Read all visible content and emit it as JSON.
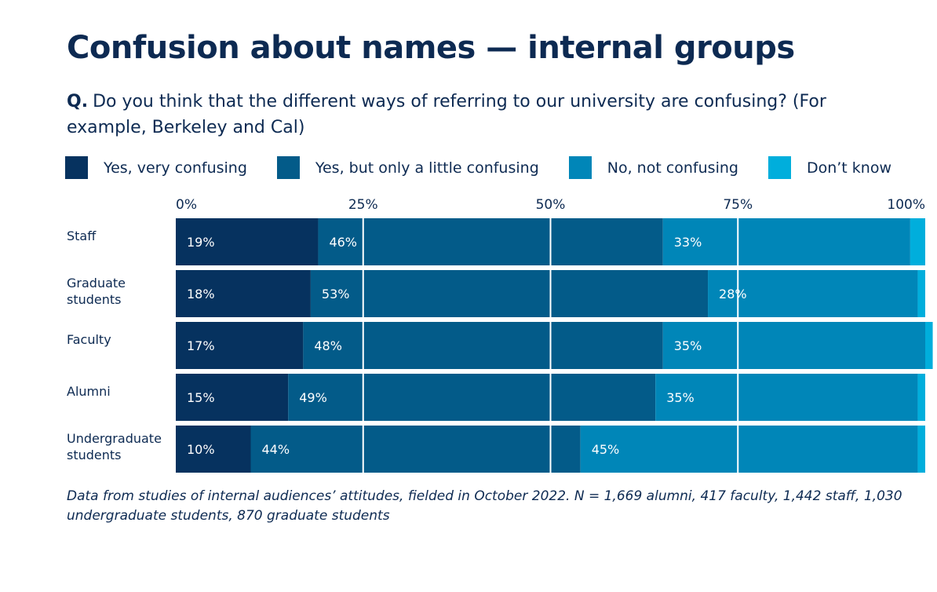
{
  "title": "Confusion about names — internal groups",
  "question": {
    "label": "Q.",
    "text": "Do you think that the different ways of referring to our university are confusing? (For example, Berkeley and Cal)"
  },
  "footnote": "Data from studies of internal audiences’ attitudes, fielded in October 2022. N = 1,669 alumni, 417 faculty, 1,442 staff, 1,030 undergraduate students, 870 graduate students",
  "chart_data": {
    "type": "bar",
    "orientation": "horizontal",
    "stacked": true,
    "categories": [
      "Staff",
      "Graduate students",
      "Faculty",
      "Alumni",
      "Undergraduate students"
    ],
    "series": [
      {
        "name": "Yes, very confusing",
        "values": [
          19,
          18,
          17,
          15,
          10
        ],
        "labels": [
          "19%",
          "18%",
          "17%",
          "15%",
          "10%"
        ],
        "color": "#06325f"
      },
      {
        "name": "Yes, but only a little confusing",
        "values": [
          46,
          53,
          48,
          49,
          44
        ],
        "labels": [
          "46%",
          "53%",
          "48%",
          "49%",
          "44%"
        ],
        "color": "#035b89"
      },
      {
        "name": "No, not confusing",
        "values": [
          33,
          28,
          35,
          35,
          45
        ],
        "labels": [
          "33%",
          "28%",
          "35%",
          "35%",
          "45%"
        ],
        "color": "#0086b8"
      },
      {
        "name": "Don’t know",
        "values": [
          2,
          1,
          1,
          1,
          1
        ],
        "color": "#00aedc"
      }
    ],
    "xlim": [
      0,
      100
    ],
    "xticks": [
      0,
      25,
      50,
      75,
      100
    ],
    "xtick_labels": [
      "0%",
      "25%",
      "50%",
      "75%",
      "100%"
    ],
    "grid": true,
    "legend_position": "top"
  }
}
